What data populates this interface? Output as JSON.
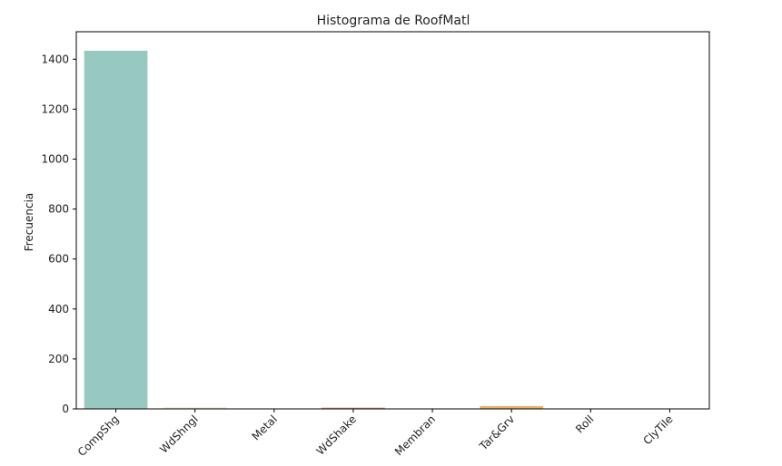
{
  "chart_data": {
    "type": "bar",
    "title": "Histograma de RoofMatl",
    "xlabel": "",
    "ylabel": "Frecuencia",
    "categories": [
      "CompShg",
      "WdShngl",
      "Metal",
      "WdShake",
      "Membran",
      "Tar&Grv",
      "Roll",
      "ClyTile"
    ],
    "values": [
      1434,
      6,
      1,
      5,
      1,
      11,
      1,
      1
    ],
    "colors": [
      "#97c9c0",
      "#e8e8b8",
      "#b9b4d4",
      "#e48b83",
      "#8cb0cf",
      "#efae63",
      "#b5d07a",
      "#f1c6dd"
    ],
    "ylim": [
      0,
      1510
    ],
    "yticks": [
      0,
      200,
      400,
      600,
      800,
      1000,
      1200,
      1400
    ],
    "grid": false,
    "legend": "none"
  }
}
